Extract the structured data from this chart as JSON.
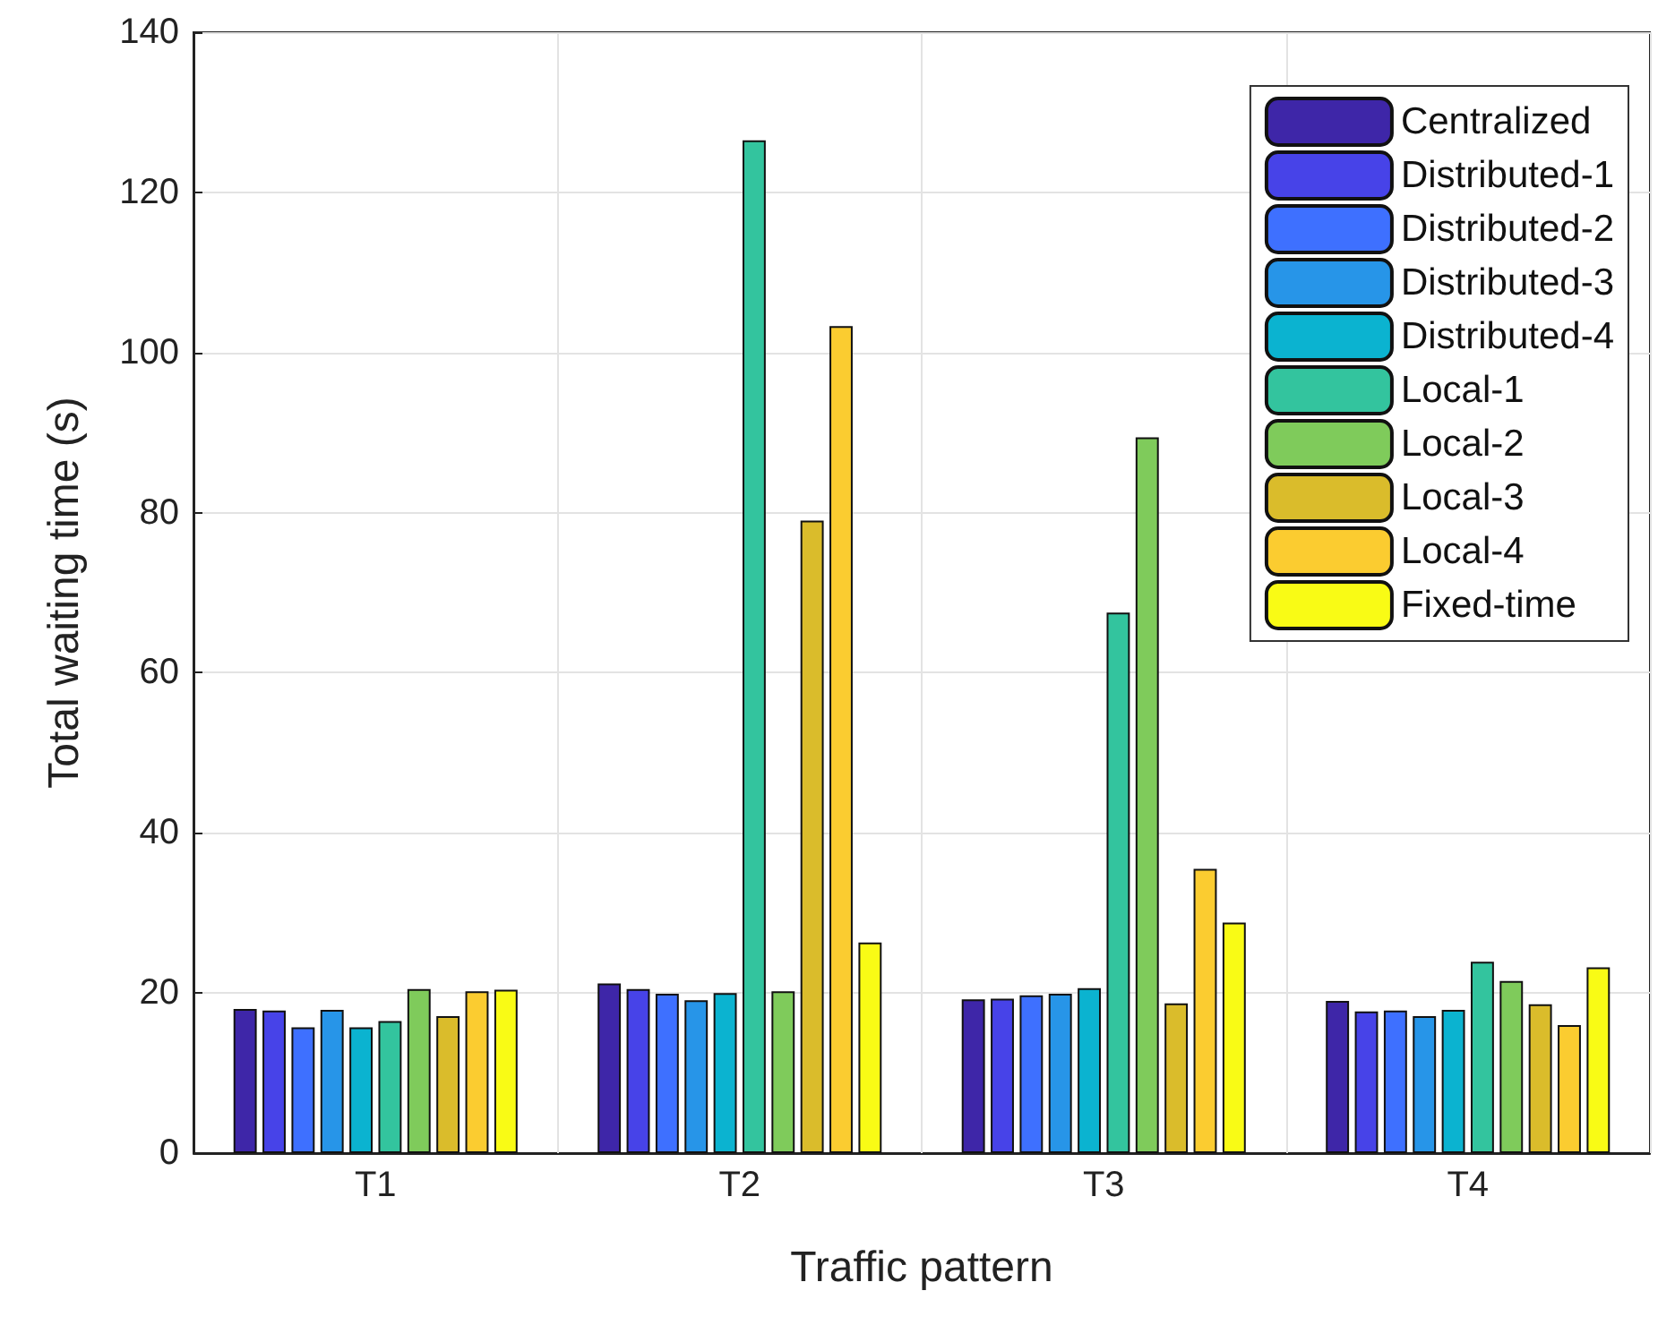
{
  "chart_data": {
    "type": "bar",
    "xlabel": "Traffic pattern",
    "ylabel": "Total waiting time (s)",
    "categories": [
      "T1",
      "T2",
      "T3",
      "T4"
    ],
    "series": [
      {
        "name": "Centralized",
        "color": "#3e26a8",
        "values": [
          18.0,
          21.2,
          19.2,
          19.0
        ]
      },
      {
        "name": "Distributed-1",
        "color": "#4743e8",
        "values": [
          17.8,
          20.5,
          19.3,
          17.7
        ]
      },
      {
        "name": "Distributed-2",
        "color": "#3e70ff",
        "values": [
          15.7,
          19.9,
          19.7,
          17.8
        ]
      },
      {
        "name": "Distributed-3",
        "color": "#2795e8",
        "values": [
          17.9,
          19.1,
          19.9,
          17.1
        ]
      },
      {
        "name": "Distributed-4",
        "color": "#0bb3d0",
        "values": [
          15.7,
          20.0,
          20.6,
          17.9
        ]
      },
      {
        "name": "Local-1",
        "color": "#33c49e",
        "values": [
          16.5,
          126.5,
          67.5,
          23.9
        ]
      },
      {
        "name": "Local-2",
        "color": "#7fcb5b",
        "values": [
          20.5,
          20.2,
          89.4,
          21.5
        ]
      },
      {
        "name": "Local-3",
        "color": "#dabc2b",
        "values": [
          17.1,
          79.0,
          18.7,
          18.6
        ]
      },
      {
        "name": "Local-4",
        "color": "#fbcc30",
        "values": [
          20.2,
          103.3,
          35.5,
          16.0
        ]
      },
      {
        "name": "Fixed-time",
        "color": "#f9fb15",
        "values": [
          20.4,
          26.3,
          28.8,
          23.2
        ]
      }
    ],
    "ylim": [
      0,
      140
    ],
    "yticks": [
      0,
      20,
      40,
      60,
      80,
      100,
      120,
      140
    ],
    "grid": true,
    "legend": "top right"
  }
}
